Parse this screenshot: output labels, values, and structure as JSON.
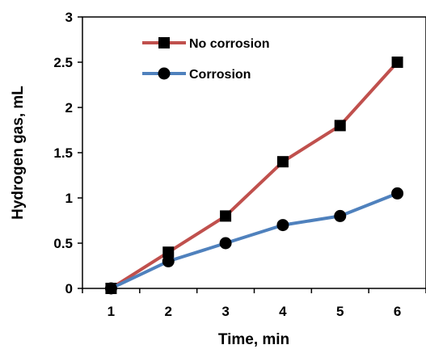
{
  "chart_data": {
    "type": "line",
    "title": "",
    "xlabel": "Time, min",
    "ylabel": "Hydrogen gas, mL",
    "x": [
      1,
      2,
      3,
      4,
      5,
      6
    ],
    "x_tick_labels": [
      "1",
      "2",
      "3",
      "4",
      "5",
      "6"
    ],
    "y_tick_labels": [
      "0",
      "0.5",
      "1",
      "1.5",
      "2",
      "2.5",
      "3"
    ],
    "xlim": [
      0.5,
      6.5
    ],
    "ylim": [
      0,
      3
    ],
    "grid": false,
    "legend_position": "top-left",
    "series": [
      {
        "name": "No corrosion",
        "values": [
          0,
          0.4,
          0.8,
          1.4,
          1.8,
          2.5
        ],
        "color": "#C0504D",
        "marker": "square"
      },
      {
        "name": "Corrosion",
        "values": [
          0,
          0.3,
          0.5,
          0.7,
          0.8,
          1.05
        ],
        "color": "#4F81BD",
        "marker": "circle"
      }
    ]
  }
}
